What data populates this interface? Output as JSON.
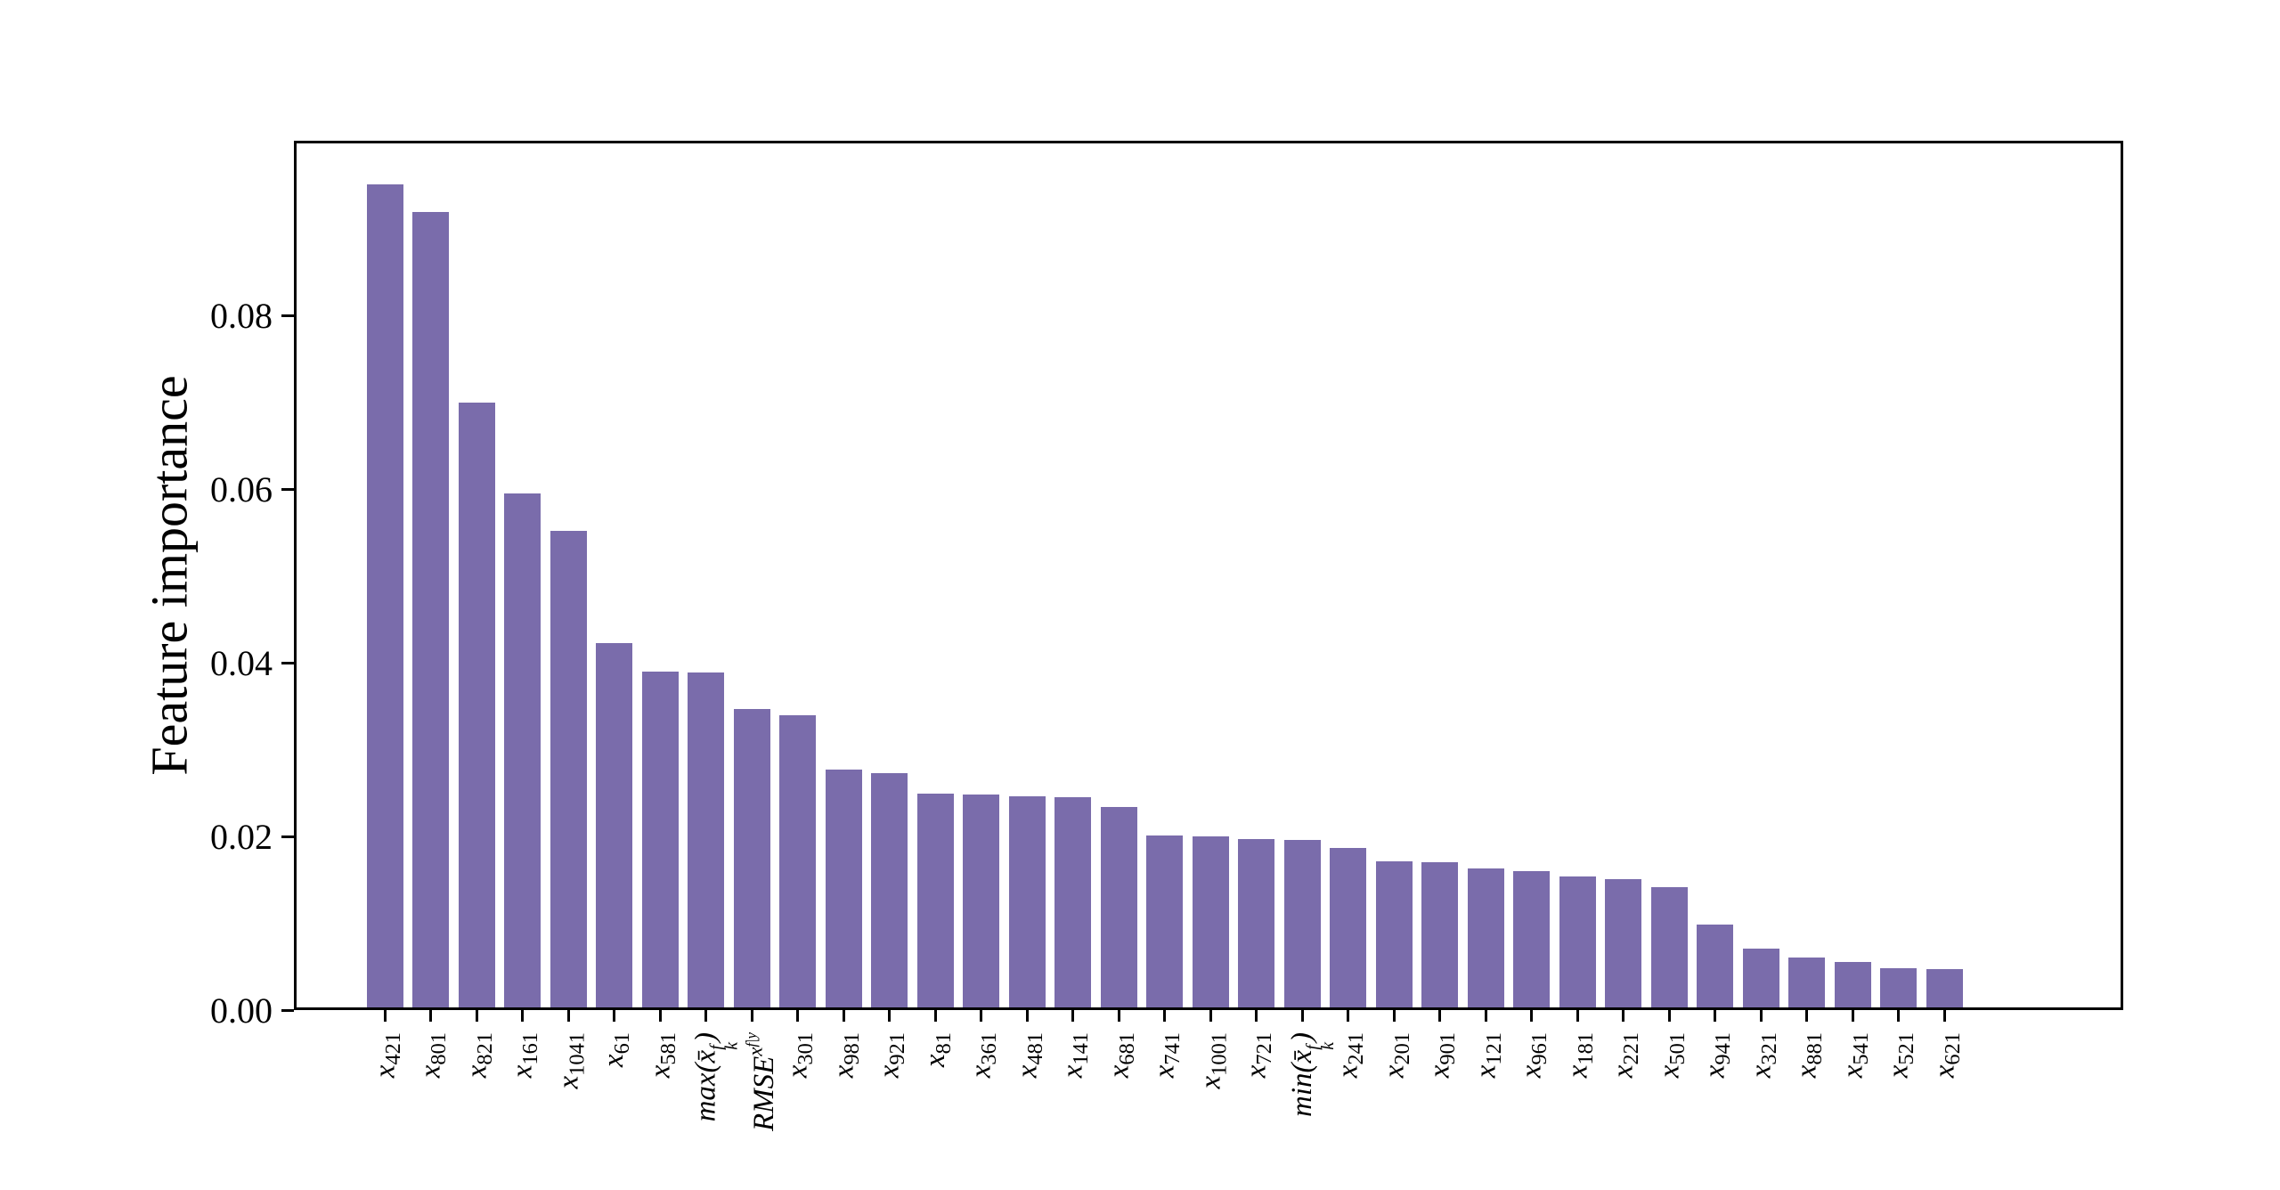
{
  "figure": {
    "background": "#ffffff"
  },
  "chart_data": {
    "type": "bar",
    "title": "",
    "xlabel": "",
    "ylabel": "Feature importance",
    "ylim": [
      0,
      0.1
    ],
    "grid": false,
    "legend": null,
    "bar_color": "#7a6cab",
    "axis_color": "#000000",
    "yticks": [
      {
        "label": "0.00",
        "value": 0.0
      },
      {
        "label": "0.02",
        "value": 0.02
      },
      {
        "label": "0.04",
        "value": 0.04
      },
      {
        "label": "0.06",
        "value": 0.06
      },
      {
        "label": "0.08",
        "value": 0.08
      }
    ],
    "categories": [
      "x_421",
      "x_801",
      "x_821",
      "x_161",
      "x_1041",
      "x_61",
      "x_581",
      "max(x̄_k^f)",
      "RMSE^{x^{f|y}}",
      "x_301",
      "x_981",
      "x_921",
      "x_81",
      "x_361",
      "x_481",
      "x_141",
      "x_681",
      "x_741",
      "x_1001",
      "x_721",
      "min(x̄_k^f)",
      "x_241",
      "x_201",
      "x_901",
      "x_121",
      "x_961",
      "x_181",
      "x_221",
      "x_501",
      "x_941",
      "x_321",
      "x_881",
      "x_541",
      "x_521",
      "x_621"
    ],
    "values": [
      0.0951,
      0.0919,
      0.07,
      0.0595,
      0.0552,
      0.0423,
      0.039,
      0.0389,
      0.0347,
      0.034,
      0.0277,
      0.0273,
      0.0249,
      0.0248,
      0.0246,
      0.0245,
      0.0234,
      0.0201,
      0.02,
      0.0197,
      0.0196,
      0.0187,
      0.0171,
      0.017,
      0.0163,
      0.016,
      0.0154,
      0.0151,
      0.0142,
      0.0098,
      0.0071,
      0.0061,
      0.0055,
      0.0048,
      0.0047
    ],
    "special_labels": {
      "7": [
        {
          "t": "max(",
          "i": true
        },
        {
          "t": "x̄",
          "i": true
        },
        {
          "v": "stk",
          "over": "f",
          "under": "k"
        },
        {
          "t": ")",
          "i": true
        }
      ],
      "8": [
        {
          "t": "RMSE",
          "i": true
        },
        {
          "t": "x",
          "v": "sup",
          "i": true
        },
        {
          "t": "f|y",
          "v": "ss",
          "i": true
        }
      ],
      "20": [
        {
          "t": "min(",
          "i": true
        },
        {
          "t": "x̄",
          "i": true
        },
        {
          "v": "stk",
          "over": "f",
          "under": "k"
        },
        {
          "t": ")",
          "i": true
        }
      ]
    }
  }
}
